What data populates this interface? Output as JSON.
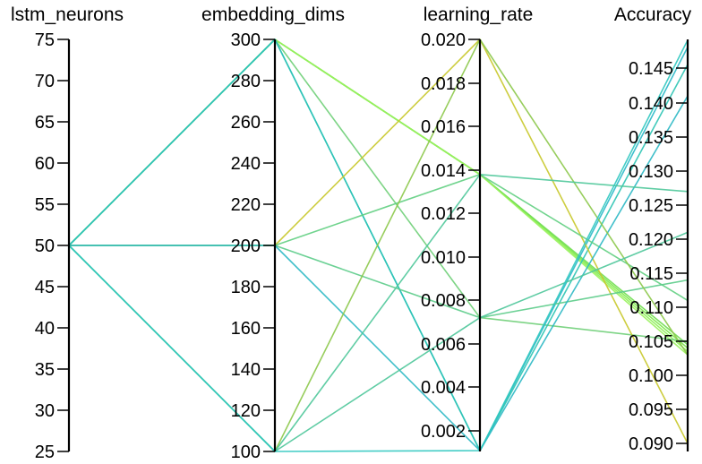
{
  "chart_data": {
    "type": "parallel_coordinates",
    "dimensions": [
      {
        "name": "lstm_neurons",
        "ticks": [
          "75",
          "70",
          "65",
          "60",
          "55",
          "50",
          "45",
          "40",
          "35",
          "30",
          "25"
        ],
        "range": [
          25,
          75
        ]
      },
      {
        "name": "embedding_dims",
        "ticks": [
          "300",
          "280",
          "260",
          "240",
          "220",
          "200",
          "180",
          "160",
          "140",
          "120",
          "100"
        ],
        "range": [
          100,
          300
        ]
      },
      {
        "name": "learning_rate",
        "ticks": [
          "0.020",
          "0.018",
          "0.016",
          "0.014",
          "0.012",
          "0.010",
          "0.008",
          "0.006",
          "0.004",
          "0.002"
        ],
        "range": [
          0.0011,
          0.02
        ]
      },
      {
        "name": "Accuracy",
        "ticks": [
          "0.145",
          "0.140",
          "0.135",
          "0.130",
          "0.125",
          "0.120",
          "0.115",
          "0.110",
          "0.105",
          "0.100",
          "0.095",
          "0.090"
        ],
        "range": [
          0.0885,
          0.1495
        ]
      }
    ],
    "traces": [
      {
        "values": [
          50,
          300,
          0.0138,
          0.104
        ],
        "color": "#7de84a"
      },
      {
        "values": [
          50,
          300,
          0.0138,
          0.1035
        ],
        "color": "#8ff05a"
      },
      {
        "values": [
          50,
          300,
          0.0138,
          0.1045
        ],
        "color": "#6fdd50"
      },
      {
        "values": [
          50,
          300,
          0.0138,
          0.103
        ],
        "color": "#9af25e"
      },
      {
        "values": [
          50,
          300,
          0.0072,
          0.105
        ],
        "color": "#6fcf78"
      },
      {
        "values": [
          50,
          300,
          0.0011,
          0.148
        ],
        "color": "#2ab9c8"
      },
      {
        "values": [
          50,
          300,
          0.0011,
          0.1455
        ],
        "color": "#2cc4b4"
      },
      {
        "values": [
          50,
          200,
          0.02,
          0.09
        ],
        "color": "#c8c82a"
      },
      {
        "values": [
          50,
          200,
          0.0138,
          0.111
        ],
        "color": "#62cf82"
      },
      {
        "values": [
          50,
          200,
          0.0072,
          0.114
        ],
        "color": "#5ccc8a"
      },
      {
        "values": [
          50,
          200,
          0.0011,
          0.141
        ],
        "color": "#2bb8c4"
      },
      {
        "values": [
          50,
          100,
          0.02,
          0.103
        ],
        "color": "#8cc84a"
      },
      {
        "values": [
          50,
          100,
          0.0138,
          0.127
        ],
        "color": "#4fc89a"
      },
      {
        "values": [
          50,
          100,
          0.0072,
          0.121
        ],
        "color": "#4ec69a"
      },
      {
        "values": [
          50,
          100,
          0.0011,
          0.149
        ],
        "color": "#30c8c0"
      }
    ]
  }
}
